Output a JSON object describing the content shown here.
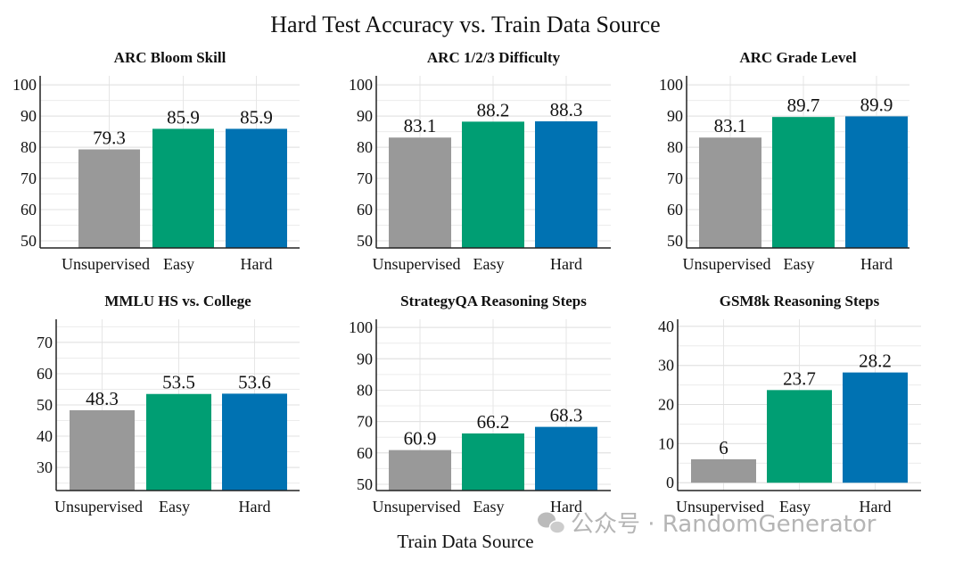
{
  "chart_data": {
    "type": "bar",
    "title": "Hard Test Accuracy vs. Train Data Source",
    "xlabel": "Train Data Source",
    "categories": [
      "Unsupervised",
      "Easy",
      "Hard"
    ],
    "colors": [
      "#999999",
      "#009E73",
      "#0072B2"
    ],
    "grid": true,
    "subplots": [
      {
        "title": "ARC Bloom Skill",
        "values": [
          79.3,
          85.9,
          85.9
        ],
        "value_labels": [
          "79.3",
          "85.9",
          "85.9"
        ],
        "ylim": [
          47.7,
          102.9
        ],
        "yticks": [
          50,
          60,
          70,
          80,
          90,
          100
        ]
      },
      {
        "title": "ARC 1/2/3 Difficulty",
        "values": [
          83.1,
          88.2,
          88.3
        ],
        "value_labels": [
          "83.1",
          "88.2",
          "88.3"
        ],
        "ylim": [
          47.7,
          102.9
        ],
        "yticks": [
          50,
          60,
          70,
          80,
          90,
          100
        ]
      },
      {
        "title": "ARC Grade Level",
        "values": [
          83.1,
          89.7,
          89.9
        ],
        "value_labels": [
          "83.1",
          "89.7",
          "89.9"
        ],
        "ylim": [
          47.7,
          102.9
        ],
        "yticks": [
          50,
          60,
          70,
          80,
          90,
          100
        ]
      },
      {
        "title": "MMLU HS vs. College",
        "values": [
          48.3,
          53.5,
          53.6
        ],
        "value_labels": [
          "48.3",
          "53.5",
          "53.6"
        ],
        "ylim": [
          22.6,
          77.4
        ],
        "yticks": [
          30,
          40,
          50,
          60,
          70
        ]
      },
      {
        "title": "StrategyQA Reasoning Steps",
        "values": [
          60.9,
          66.2,
          68.3
        ],
        "value_labels": [
          "60.9",
          "66.2",
          "68.3"
        ],
        "ylim": [
          48,
          102.6
        ],
        "yticks": [
          50,
          60,
          70,
          80,
          90,
          100
        ]
      },
      {
        "title": "GSM8k Reasoning Steps",
        "values": [
          6,
          23.7,
          28.2
        ],
        "value_labels": [
          "6",
          "23.7",
          "28.2"
        ],
        "ylim": [
          -2,
          41.8
        ],
        "yticks": [
          0,
          10,
          20,
          30,
          40
        ]
      }
    ]
  },
  "watermark": "公众号 · RandomGenerator"
}
